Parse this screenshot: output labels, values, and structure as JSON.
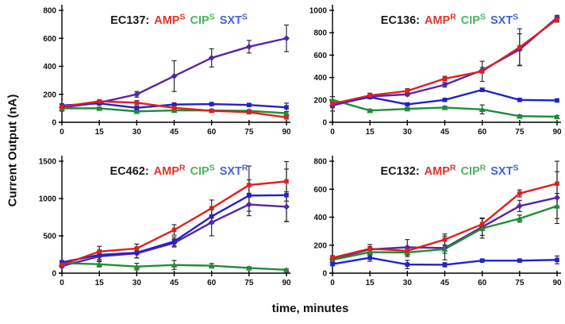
{
  "figure": {
    "y_axis_label": "Current Output (nA)",
    "x_axis_label": "time, minutes",
    "colors": {
      "AMP": "#e01f1f",
      "CIP": "#1f8f35",
      "SXT": "#2222cc",
      "control": "#5526a8",
      "error": "#2e2e2e",
      "axis": "#000000",
      "strain": "#1a1a1a"
    },
    "title_colors": {
      "AMP": "#e53228",
      "CIP": "#4db45f",
      "SXT": "#4361e0"
    }
  },
  "chart_data": [
    {
      "type": "line",
      "strain": "EC137:",
      "antibiotics": [
        {
          "drug": "AMP",
          "status": "S"
        },
        {
          "drug": "CIP",
          "status": "S"
        },
        {
          "drug": "SXT",
          "status": "S"
        }
      ],
      "x": [
        0,
        15,
        30,
        45,
        60,
        75,
        90
      ],
      "ylim": [
        0,
        800
      ],
      "yticks": [
        0,
        200,
        400,
        600,
        800
      ],
      "series": [
        {
          "name": "control",
          "marker": "diamond",
          "values": [
            105,
            140,
            200,
            330,
            460,
            540,
            600
          ],
          "errors": [
            25,
            15,
            20,
            110,
            65,
            45,
            95
          ]
        },
        {
          "name": "CIP",
          "marker": "triangle",
          "values": [
            100,
            100,
            78,
            85,
            85,
            82,
            65
          ],
          "errors": [
            10,
            8,
            8,
            8,
            8,
            8,
            10
          ]
        },
        {
          "name": "SXT",
          "marker": "square",
          "values": [
            120,
            135,
            103,
            127,
            130,
            124,
            107
          ],
          "errors": [
            12,
            10,
            10,
            10,
            10,
            10,
            30
          ]
        },
        {
          "name": "AMP",
          "marker": "square",
          "values": [
            112,
            150,
            140,
            103,
            82,
            72,
            35
          ],
          "errors": [
            12,
            10,
            15,
            10,
            10,
            10,
            10
          ]
        }
      ]
    },
    {
      "type": "line",
      "strain": "EC136:",
      "antibiotics": [
        {
          "drug": "AMP",
          "status": "R"
        },
        {
          "drug": "CIP",
          "status": "S"
        },
        {
          "drug": "SXT",
          "status": "S"
        }
      ],
      "x": [
        0,
        15,
        30,
        45,
        60,
        75,
        90
      ],
      "ylim": [
        0,
        1000
      ],
      "yticks": [
        0,
        200,
        400,
        600,
        800,
        1000
      ],
      "series": [
        {
          "name": "control",
          "marker": "diamond",
          "values": [
            150,
            230,
            250,
            335,
            465,
            650,
            935
          ],
          "errors": [
            20,
            15,
            15,
            20,
            25,
            140,
            20
          ]
        },
        {
          "name": "CIP",
          "marker": "triangle",
          "values": [
            200,
            105,
            120,
            132,
            115,
            55,
            50
          ],
          "errors": [
            30,
            10,
            10,
            12,
            40,
            10,
            10
          ]
        },
        {
          "name": "SXT",
          "marker": "square",
          "values": [
            160,
            225,
            160,
            200,
            290,
            200,
            195
          ],
          "errors": [
            20,
            15,
            12,
            12,
            15,
            12,
            12
          ]
        },
        {
          "name": "AMP",
          "marker": "square",
          "values": [
            165,
            240,
            280,
            390,
            455,
            670,
            920
          ],
          "errors": [
            65,
            20,
            20,
            20,
            90,
            165,
            25
          ]
        }
      ]
    },
    {
      "type": "line",
      "strain": "EC462:",
      "antibiotics": [
        {
          "drug": "AMP",
          "status": "R"
        },
        {
          "drug": "CIP",
          "status": "S"
        },
        {
          "drug": "SXT",
          "status": "R"
        }
      ],
      "x": [
        0,
        15,
        30,
        45,
        60,
        75,
        90
      ],
      "ylim": [
        0,
        1500
      ],
      "yticks": [
        0,
        500,
        1000,
        1500
      ],
      "series": [
        {
          "name": "control",
          "marker": "diamond",
          "values": [
            95,
            225,
            265,
            405,
            680,
            920,
            890
          ],
          "errors": [
            20,
            60,
            60,
            55,
            180,
            150,
            200
          ]
        },
        {
          "name": "CIP",
          "marker": "triangle",
          "values": [
            135,
            120,
            88,
            110,
            100,
            70,
            45
          ],
          "errors": [
            20,
            35,
            45,
            60,
            30,
            15,
            12
          ]
        },
        {
          "name": "SXT",
          "marker": "square",
          "values": [
            145,
            245,
            275,
            425,
            760,
            1040,
            1045
          ],
          "errors": [
            25,
            60,
            70,
            60,
            95,
            210,
            350
          ]
        },
        {
          "name": "AMP",
          "marker": "square",
          "values": [
            110,
            290,
            330,
            580,
            870,
            1180,
            1230
          ],
          "errors": [
            25,
            70,
            60,
            70,
            110,
            255,
            265
          ]
        }
      ]
    },
    {
      "type": "line",
      "strain": "EC132:",
      "antibiotics": [
        {
          "drug": "AMP",
          "status": "R"
        },
        {
          "drug": "CIP",
          "status": "R"
        },
        {
          "drug": "SXT",
          "status": "S"
        }
      ],
      "x": [
        0,
        15,
        30,
        45,
        60,
        75,
        90
      ],
      "ylim": [
        0,
        800
      ],
      "yticks": [
        0,
        200,
        400,
        600,
        800
      ],
      "series": [
        {
          "name": "control",
          "marker": "diamond",
          "values": [
            100,
            170,
            185,
            180,
            330,
            480,
            540
          ],
          "errors": [
            12,
            20,
            55,
            85,
            60,
            40,
            185
          ]
        },
        {
          "name": "CIP",
          "marker": "triangle",
          "values": [
            95,
            150,
            148,
            172,
            320,
            390,
            480
          ],
          "errors": [
            10,
            20,
            30,
            30,
            70,
            25,
            90
          ]
        },
        {
          "name": "SXT",
          "marker": "square",
          "values": [
            65,
            110,
            62,
            60,
            90,
            90,
            95
          ],
          "errors": [
            10,
            25,
            30,
            15,
            10,
            10,
            28
          ]
        },
        {
          "name": "AMP",
          "marker": "square",
          "values": [
            110,
            175,
            160,
            240,
            350,
            570,
            640
          ],
          "errors": [
            15,
            30,
            30,
            40,
            45,
            25,
            160
          ]
        }
      ]
    }
  ]
}
